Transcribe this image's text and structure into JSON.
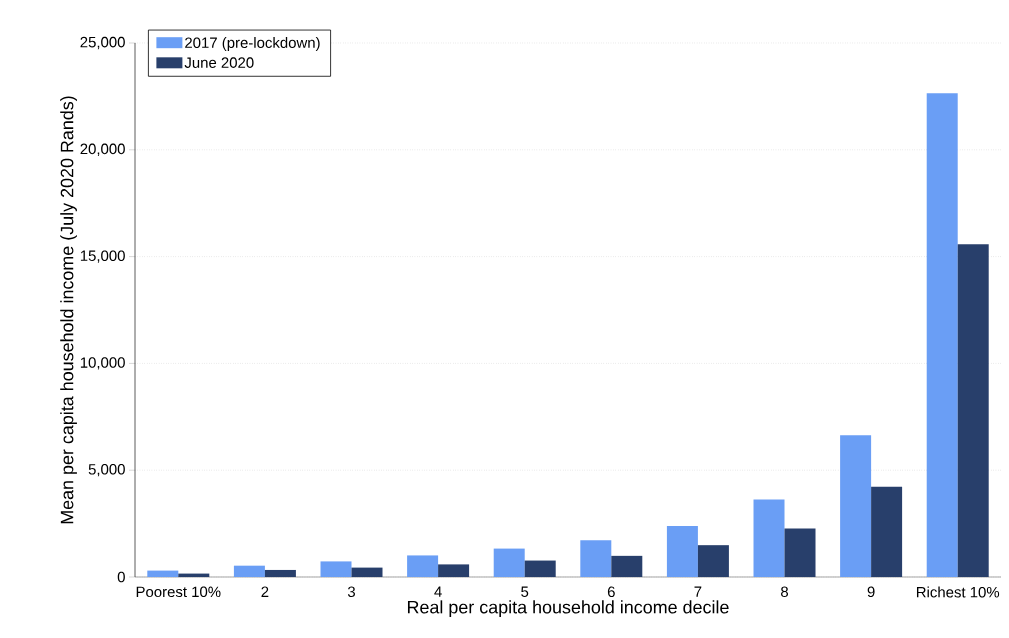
{
  "chart_data": {
    "type": "bar",
    "xlabel": "Real per capita household income decile",
    "ylabel": "Mean per capita household income (July 2020 Rands)",
    "categories": [
      "Poorest 10%",
      "2",
      "3",
      "4",
      "5",
      "6",
      "7",
      "8",
      "9",
      "Richest 10%"
    ],
    "series": [
      {
        "name": "2017 (pre-lockdown)",
        "color": "#6a9ef5",
        "values": [
          300,
          530,
          730,
          1010,
          1330,
          1720,
          2390,
          3630,
          6640,
          22650
        ]
      },
      {
        "name": "June 2020",
        "color": "#283f6b",
        "values": [
          160,
          330,
          440,
          590,
          770,
          990,
          1490,
          2270,
          4220,
          15580
        ]
      }
    ],
    "ylim": [
      0,
      25000
    ],
    "yticks": [
      0,
      {
        "value": 5000,
        "label": "5,000"
      },
      {
        "value": 10000,
        "label": "10,000"
      },
      {
        "value": 15000,
        "label": "15,000"
      },
      {
        "value": 20000,
        "label": "20,000"
      },
      {
        "value": 25000,
        "label": "25,000"
      }
    ],
    "grid": "y",
    "legend": "top left"
  }
}
